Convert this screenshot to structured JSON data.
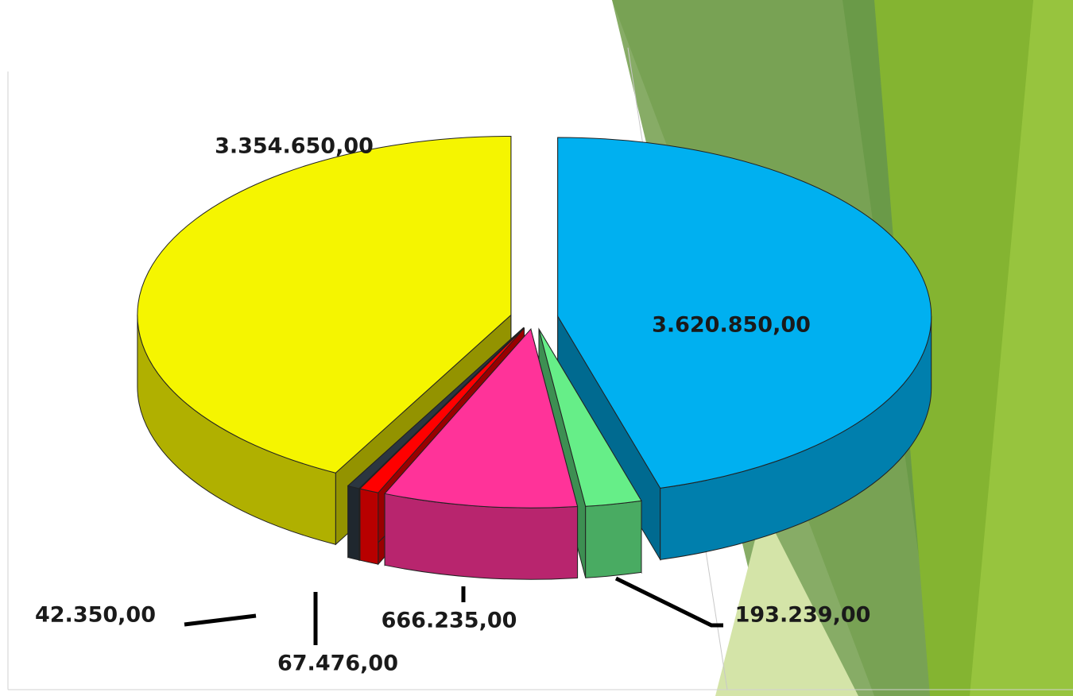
{
  "chart_data": {
    "type": "pie3d",
    "categories": [
      null,
      null,
      null,
      null,
      null,
      null
    ],
    "values": [
      3620850,
      193239,
      666235,
      67476,
      42350,
      3354650
    ],
    "value_labels": [
      "3.620.850,00",
      "193.239,00",
      "666.235,00",
      "67.476,00",
      "42.350,00",
      "3.354.650,00"
    ],
    "colors": [
      "#00b0f0",
      "#66ee88",
      "#ff3399",
      "#ff0000",
      "#2b3640",
      "#f5f500"
    ]
  }
}
